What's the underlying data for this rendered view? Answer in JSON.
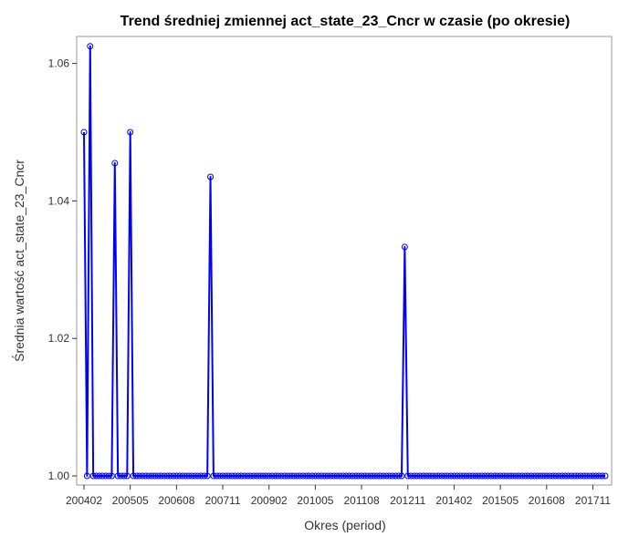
{
  "chart_data": {
    "type": "line",
    "title": "Trend średniej zmiennej act_state_23_Cncr w czasie (po okresie)",
    "xlabel": "Okres (period)",
    "ylabel": "Średnia wartość act_state_23_Cncr",
    "x_start": "200402",
    "x_end": "201803",
    "x_ticks": [
      "200402",
      "200505",
      "200608",
      "200711",
      "200902",
      "201005",
      "201108",
      "201211",
      "201402",
      "201505",
      "201608",
      "201711"
    ],
    "y_ticks": [
      "1.00",
      "1.02",
      "1.04",
      "1.06"
    ],
    "ylim": [
      1.0,
      1.063
    ],
    "grid": false,
    "legend": "none",
    "color": "#0000ff",
    "markers": "circle",
    "baseline": 1.0,
    "spikes": [
      {
        "x": "200402",
        "y": 1.05
      },
      {
        "x": "200404",
        "y": 1.0625
      },
      {
        "x": "200412",
        "y": 1.0455
      },
      {
        "x": "200505",
        "y": 1.05
      },
      {
        "x": "200707",
        "y": 1.0435
      },
      {
        "x": "201210",
        "y": 1.0333
      }
    ]
  }
}
